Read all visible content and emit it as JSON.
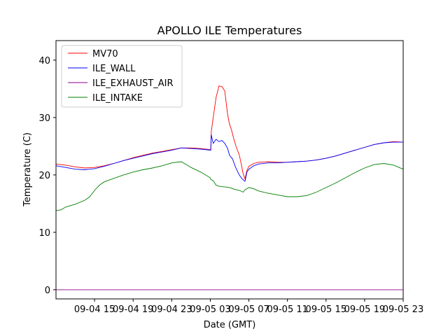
{
  "chart_data": {
    "type": "line",
    "title": "APOLLO ILE Temperatures",
    "xlabel": "Date (GMT)",
    "ylabel": "Temperature (C)",
    "xlim": [
      0,
      36
    ],
    "ylim": [
      -1.6,
      43.4
    ],
    "grid": false,
    "legend_position": "top-left",
    "xticks": [
      {
        "value": 4,
        "label": "09-04 15"
      },
      {
        "value": 8,
        "label": "09-04 19"
      },
      {
        "value": 12,
        "label": "09-04 23"
      },
      {
        "value": 16,
        "label": "09-05 03"
      },
      {
        "value": 20,
        "label": "09-05 07"
      },
      {
        "value": 24,
        "label": "09-05 11"
      },
      {
        "value": 28,
        "label": "09-05 15"
      },
      {
        "value": 32,
        "label": "09-05 19"
      },
      {
        "value": 36,
        "label": "09-05 23"
      }
    ],
    "yticks": [
      {
        "value": 0,
        "label": "0"
      },
      {
        "value": 10,
        "label": "10"
      },
      {
        "value": 20,
        "label": "20"
      },
      {
        "value": 30,
        "label": "30"
      },
      {
        "value": 40,
        "label": "40"
      }
    ],
    "series": [
      {
        "name": "MV70",
        "color": "#ff0000",
        "x": [
          0,
          1,
          2,
          3,
          4,
          5,
          6,
          7,
          8,
          9,
          10,
          11,
          12,
          13,
          14,
          15,
          16.05,
          16.1,
          16.3,
          16.6,
          16.9,
          17.2,
          17.5,
          17.8,
          18.0,
          18.2,
          18.4,
          18.7,
          19.0,
          19.2,
          19.4,
          19.6,
          19.8,
          20.0,
          20.5,
          21,
          22,
          23,
          24,
          25,
          26,
          27,
          28,
          29,
          30,
          31,
          32,
          33,
          34,
          35,
          36
        ],
        "y": [
          21.9,
          21.7,
          21.4,
          21.2,
          21.3,
          21.6,
          22.0,
          22.5,
          23.0,
          23.4,
          23.8,
          24.1,
          24.4,
          24.7,
          24.7,
          24.6,
          24.4,
          27.5,
          30.0,
          33.5,
          35.5,
          35.4,
          34.6,
          30.5,
          28.8,
          27.8,
          26.5,
          24.8,
          23.5,
          22.0,
          20.2,
          19.3,
          20.8,
          21.5,
          22.0,
          22.2,
          22.3,
          22.2,
          22.2,
          22.3,
          22.4,
          22.6,
          22.9,
          23.3,
          23.8,
          24.3,
          24.8,
          25.3,
          25.6,
          25.8,
          25.7
        ]
      },
      {
        "name": "ILE_WALL",
        "color": "#0000ff",
        "x": [
          0,
          1,
          2,
          3,
          4,
          5,
          6,
          7,
          8,
          9,
          10,
          11,
          12,
          13,
          14,
          15,
          16.05,
          16.1,
          16.3,
          16.6,
          16.9,
          17.2,
          17.5,
          17.8,
          18.0,
          18.3,
          18.6,
          19.0,
          19.3,
          19.6,
          19.8,
          20.0,
          20.5,
          21,
          22,
          23,
          24,
          25,
          26,
          27,
          28,
          29,
          30,
          31,
          32,
          33,
          34,
          35,
          36
        ],
        "y": [
          21.6,
          21.3,
          21.0,
          20.9,
          21.1,
          21.5,
          22.0,
          22.5,
          22.9,
          23.3,
          23.7,
          24.0,
          24.3,
          24.7,
          24.6,
          24.5,
          24.3,
          27.0,
          25.5,
          26.2,
          25.8,
          26.0,
          25.5,
          24.6,
          23.4,
          22.8,
          21.4,
          20.0,
          19.3,
          18.9,
          20.5,
          21.0,
          21.6,
          21.9,
          22.1,
          22.1,
          22.2,
          22.3,
          22.4,
          22.6,
          22.9,
          23.3,
          23.8,
          24.3,
          24.8,
          25.3,
          25.6,
          25.7,
          25.7
        ]
      },
      {
        "name": "ILE_EXHAUST_AIR",
        "color": "#8b008b",
        "x": [
          0,
          36
        ],
        "y": [
          0,
          0
        ]
      },
      {
        "name": "ILE_INTAKE",
        "color": "#008000",
        "x": [
          0,
          0.5,
          1,
          2,
          3,
          3.5,
          4,
          4.5,
          5,
          6,
          7,
          8,
          9,
          10,
          11,
          12,
          13,
          14,
          15,
          16,
          16.05,
          16.3,
          16.6,
          17,
          17.5,
          18,
          18.5,
          19,
          19.4,
          19.6,
          20,
          20.5,
          21,
          22,
          23,
          24,
          25,
          26,
          27,
          28,
          29,
          30,
          31,
          32,
          33,
          34,
          35,
          36
        ],
        "y": [
          13.8,
          13.9,
          14.4,
          14.9,
          15.6,
          16.2,
          17.3,
          18.2,
          18.8,
          19.4,
          20.0,
          20.5,
          20.9,
          21.2,
          21.6,
          22.1,
          22.3,
          21.3,
          20.5,
          19.5,
          19.2,
          19.0,
          18.2,
          18.0,
          17.9,
          17.8,
          17.5,
          17.3,
          17.0,
          17.4,
          17.8,
          17.6,
          17.2,
          16.8,
          16.5,
          16.2,
          16.2,
          16.4,
          17.0,
          17.8,
          18.6,
          19.5,
          20.4,
          21.2,
          21.8,
          22.0,
          21.7,
          21.0
        ]
      }
    ]
  }
}
